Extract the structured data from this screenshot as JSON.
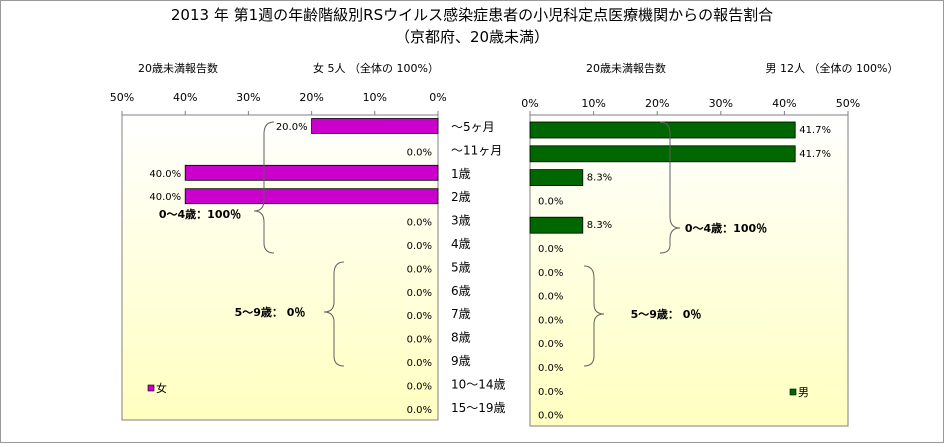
{
  "title": "2013 年 第1週の年齢階級別RSウイルス感染症患者の小児科定点医療機関からの報告割合",
  "subtitle": "（京都府、20歳未満）",
  "colors": {
    "female": "#CC00CC",
    "male": "#006600",
    "bg_top": "#FFFFFF",
    "bg_bottom": "#FFFFC0"
  },
  "chart_data": [
    {
      "type": "bar",
      "orientation": "horizontal",
      "direction": "right-to-left",
      "header_left": "20歳未満報告数",
      "header_right": "女  5人 （全体の  100%）",
      "series": [
        {
          "name": "女",
          "values": [
            20.0,
            0.0,
            40.0,
            40.0,
            0.0,
            0.0,
            0.0,
            0.0,
            0.0,
            0.0,
            0.0,
            0.0,
            0.0
          ]
        }
      ],
      "value_labels": [
        "20.0%",
        "0.0%",
        "40.0%",
        "40.0%",
        "0.0%",
        "0.0%",
        "0.0%",
        "0.0%",
        "0.0%",
        "0.0%",
        "0.0%",
        "0.0%",
        "0.0%"
      ],
      "xlim": [
        0,
        50
      ],
      "ticks": [
        "50%",
        "40%",
        "30%",
        "20%",
        "10%",
        "0%"
      ],
      "legend": "bottom-left",
      "brackets": [
        "0～4歳：100％",
        "5～9歳：   0％"
      ]
    },
    {
      "type": "bar",
      "orientation": "horizontal",
      "direction": "left-to-right",
      "header_left": "20歳未満報告数",
      "header_right": "男  12人 （全体の   100%）",
      "series": [
        {
          "name": "男",
          "values": [
            41.7,
            41.7,
            8.3,
            0.0,
            8.3,
            0.0,
            0.0,
            0.0,
            0.0,
            0.0,
            0.0,
            0.0,
            0.0
          ]
        }
      ],
      "value_labels": [
        "41.7%",
        "41.7%",
        "8.3%",
        "0.0%",
        "8.3%",
        "0.0%",
        "0.0%",
        "0.0%",
        "0.0%",
        "0.0%",
        "0.0%",
        "0.0%",
        "0.0%"
      ],
      "xlim": [
        0,
        50
      ],
      "ticks": [
        "0%",
        "10%",
        "20%",
        "30%",
        "40%",
        "50%"
      ],
      "legend": "bottom-right",
      "brackets": [
        "0～4歳：100％",
        "5～9歳：   0％"
      ]
    }
  ],
  "categories": [
    "～5ヶ月",
    "～11ヶ月",
    "1歳",
    "2歳",
    "3歳",
    "4歳",
    "5歳",
    "6歳",
    "7歳",
    "8歳",
    "9歳",
    "10～14歳",
    "15～19歳"
  ]
}
